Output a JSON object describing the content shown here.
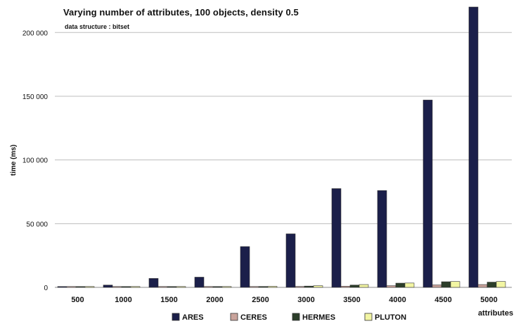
{
  "chart_data": {
    "type": "bar",
    "title": "Varying number of attributes, 100 objects, density 0.5",
    "subtitle": "data structure : bitset",
    "ylabel": "time (ms)",
    "xlabel": "attributes",
    "categories": [
      "500",
      "1000",
      "1500",
      "2000",
      "2500",
      "3000",
      "3500",
      "4000",
      "4500",
      "5000"
    ],
    "ylim": [
      0,
      220000
    ],
    "yticks": [
      0,
      50000,
      100000,
      150000,
      200000
    ],
    "ytick_labels": [
      "0",
      "50 000",
      "100 000",
      "150 000",
      "200 000"
    ],
    "grid": true,
    "legend_position": "bottom",
    "series": [
      {
        "name": "ARES",
        "color": "#1b1f4a",
        "values": [
          300,
          1800,
          7000,
          8000,
          32000,
          42000,
          77500,
          76000,
          147000,
          220000
        ]
      },
      {
        "name": "CERES",
        "color": "#c9a39b",
        "values": [
          100,
          200,
          300,
          400,
          500,
          700,
          900,
          1300,
          1900,
          2200
        ]
      },
      {
        "name": "HERMES",
        "color": "#2c3e2a",
        "values": [
          100,
          200,
          300,
          500,
          700,
          1000,
          1800,
          3300,
          4400,
          4100
        ]
      },
      {
        "name": "PLUTON",
        "color": "#f2f5a3",
        "values": [
          100,
          200,
          300,
          500,
          800,
          1300,
          2200,
          3400,
          4600,
          4600
        ]
      }
    ]
  }
}
